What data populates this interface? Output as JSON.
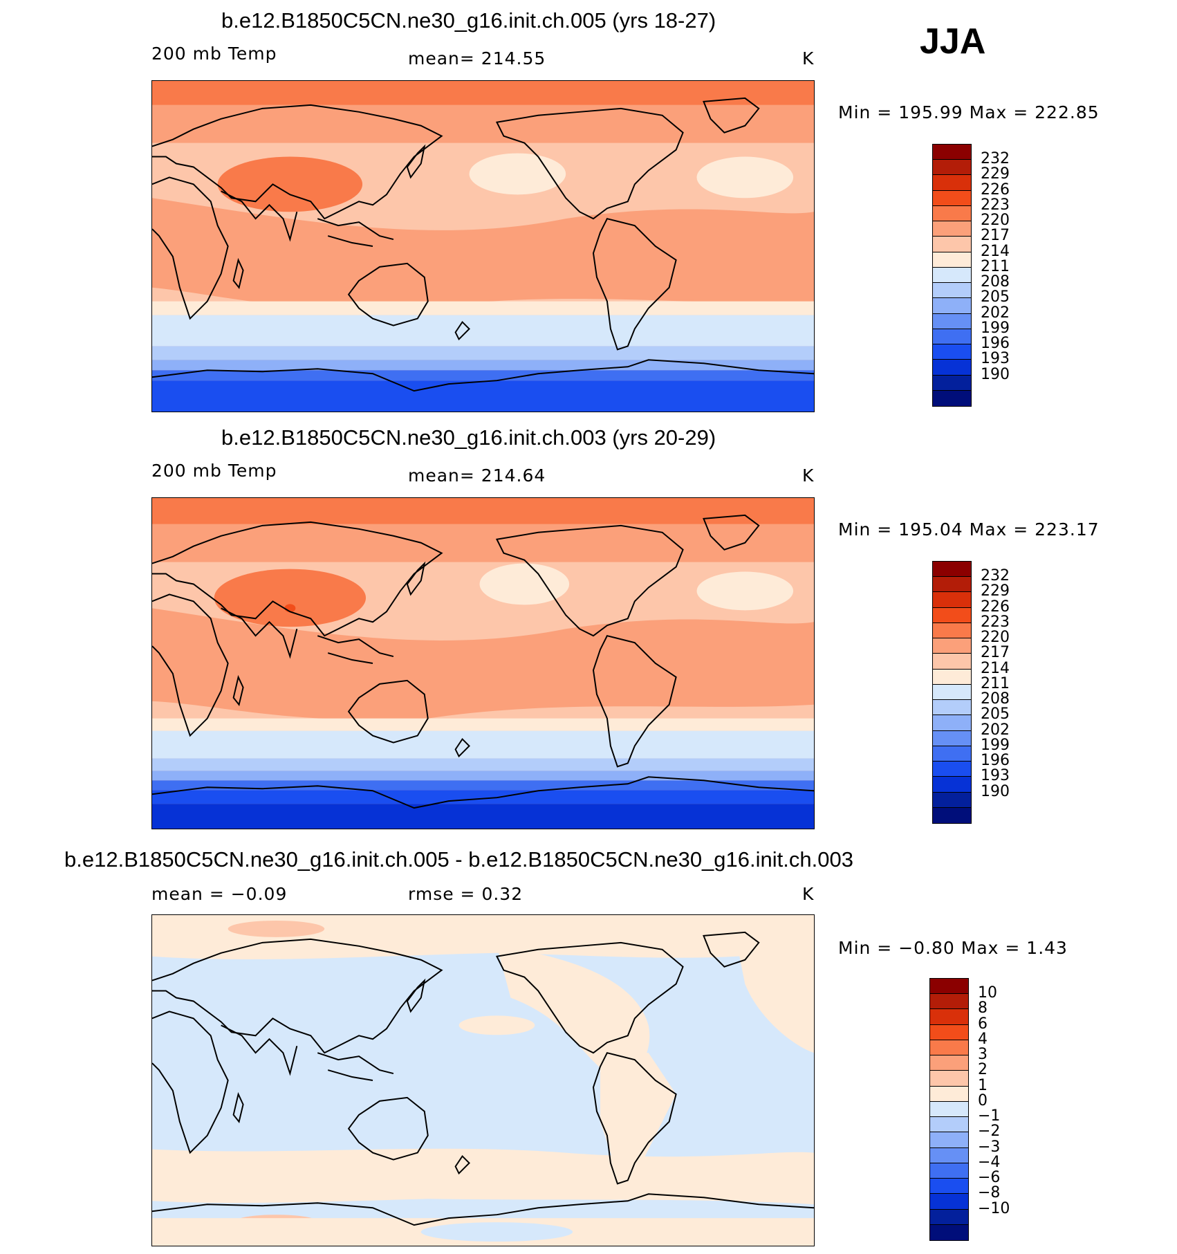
{
  "season": "JJA",
  "panels": [
    {
      "title": "b.e12.B1850C5CN.ne30_g16.init.ch.005 (yrs 18-27)",
      "left_label": "200 mb Temp",
      "center_label": "mean=  214.55",
      "units": "K",
      "minmax": "Min  =  195.99  Max  =  222.85"
    },
    {
      "title": "b.e12.B1850C5CN.ne30_g16.init.ch.003 (yrs 20-29)",
      "left_label": "200 mb Temp",
      "center_label": "mean=  214.64",
      "units": "K",
      "minmax": "Min  =  195.04  Max  =  223.17"
    },
    {
      "title": "b.e12.B1850C5CN.ne30_g16.init.ch.005 - b.e12.B1850C5CN.ne30_g16.init.ch.003",
      "left_label": "mean  =    −0.09",
      "center_label": "rmse  =      0.32",
      "units": "K",
      "minmax": "Min  =    −0.80  Max  =      1.43"
    }
  ],
  "colorbar_abs": {
    "labels": [
      "232",
      "229",
      "226",
      "223",
      "220",
      "217",
      "214",
      "211",
      "208",
      "205",
      "202",
      "199",
      "196",
      "193",
      "190"
    ],
    "colors": [
      "#8b0000",
      "#b31d08",
      "#d9300a",
      "#f24d1a",
      "#f97a4a",
      "#fba07a",
      "#fdc6aa",
      "#feebd8",
      "#d6e8fb",
      "#b3cdfa",
      "#8eb0f8",
      "#6690f5",
      "#3f6ff2",
      "#1a4ef0",
      "#0632d6",
      "#03209c",
      "#000e7a"
    ]
  },
  "colorbar_diff": {
    "labels": [
      "10",
      "8",
      "6",
      "4",
      "3",
      "2",
      "1",
      "0",
      "−1",
      "−2",
      "−3",
      "−4",
      "−6",
      "−8",
      "−10"
    ],
    "colors": [
      "#8b0000",
      "#b31d08",
      "#d9300a",
      "#f24d1a",
      "#f97a4a",
      "#fba07a",
      "#fdc6aa",
      "#feebd8",
      "#d6e8fb",
      "#b3cdfa",
      "#8eb0f8",
      "#6690f5",
      "#3f6ff2",
      "#1a4ef0",
      "#0632d6",
      "#03209c",
      "#000e7a"
    ]
  }
}
